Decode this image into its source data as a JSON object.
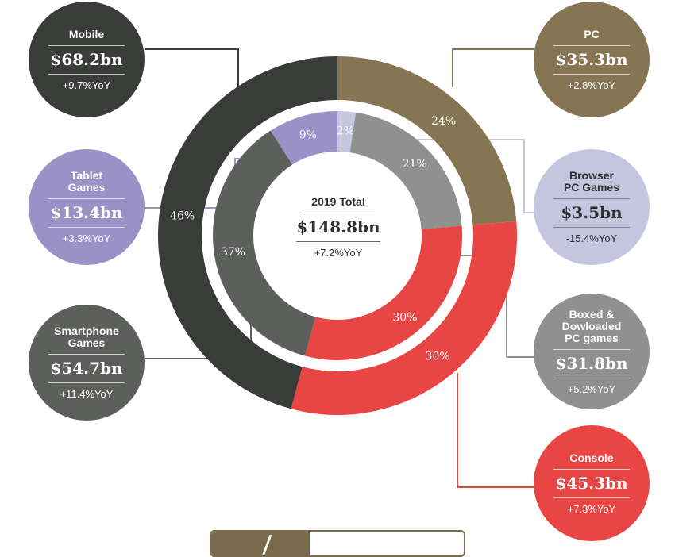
{
  "chart_data": {
    "type": "donut",
    "title": "2019 Total",
    "total": {
      "label": "2019 Total",
      "value": "$148.8bn",
      "yoy": "+7.2%YoY"
    },
    "outer_ring": [
      {
        "name": "PC",
        "value_bn": 35.3,
        "value_label": "$35.3bn",
        "yoy": "+2.8%YoY",
        "pct": 24,
        "pct_label": "24%",
        "color": "#857552"
      },
      {
        "name": "Console",
        "value_bn": 45.3,
        "value_label": "$45.3bn",
        "yoy": "+7.3%YoY",
        "pct": 30,
        "pct_label": "30%",
        "color": "#e84545"
      },
      {
        "name": "Mobile",
        "value_bn": 68.2,
        "value_label": "$68.2bn",
        "yoy": "+9.7%YoY",
        "pct": 46,
        "pct_label": "46%",
        "color": "#393c39"
      }
    ],
    "inner_ring": [
      {
        "name": "Browser\nPC Games",
        "value_bn": 3.5,
        "value_label": "$3.5bn",
        "yoy": "-15.4%YoY",
        "pct": 2,
        "pct_label": "2%",
        "color": "#c5c5e0"
      },
      {
        "name": "Boxed &\nDowloaded\nPC games",
        "value_bn": 31.8,
        "value_label": "$31.8bn",
        "yoy": "+5.2%YoY",
        "pct": 21,
        "pct_label": "21%",
        "color": "#909090"
      },
      {
        "name": "Console",
        "value_bn": 45.3,
        "value_label": "$45.3bn",
        "yoy": "+7.3%YoY",
        "pct": 30,
        "pct_label": "30%",
        "color": "#e84545"
      },
      {
        "name": "Smartphone\nGames",
        "value_bn": 54.7,
        "value_label": "$54.7bn",
        "yoy": "+11.4%YoY",
        "pct": 37,
        "pct_label": "37%",
        "color": "#5d5f5c"
      },
      {
        "name": "Tablet\nGames",
        "value_bn": 13.4,
        "value_label": "$13.4bn",
        "yoy": "+3.3%YoY",
        "pct": 9,
        "pct_label": "9%",
        "color": "#9a92c7"
      }
    ],
    "callouts": [
      {
        "id": "mobile",
        "name": "Mobile",
        "value": "$68.2bn",
        "yoy": "+9.7%YoY",
        "color": "#393c39"
      },
      {
        "id": "tablet",
        "name": "Tablet\nGames",
        "value": "$13.4bn",
        "yoy": "+3.3%YoY",
        "color": "#9a92c7"
      },
      {
        "id": "smartphone",
        "name": "Smartphone\nGames",
        "value": "$54.7bn",
        "yoy": "+11.4%YoY",
        "color": "#5d5f5c"
      },
      {
        "id": "pc",
        "name": "PC",
        "value": "$35.3bn",
        "yoy": "+2.8%YoY",
        "color": "#857552"
      },
      {
        "id": "browser",
        "name": "Browser\nPC Games",
        "value": "$3.5bn",
        "yoy": "-15.4%YoY",
        "color": "#c5c5e0"
      },
      {
        "id": "boxed",
        "name": "Boxed &\nDowloaded\nPC games",
        "value": "$31.8bn",
        "yoy": "+5.2%YoY",
        "color": "#909090"
      },
      {
        "id": "console",
        "name": "Console",
        "value": "$45.3bn",
        "yoy": "+7.3%YoY",
        "color": "#e84545"
      }
    ],
    "legend_color": "#7a6b4d"
  }
}
